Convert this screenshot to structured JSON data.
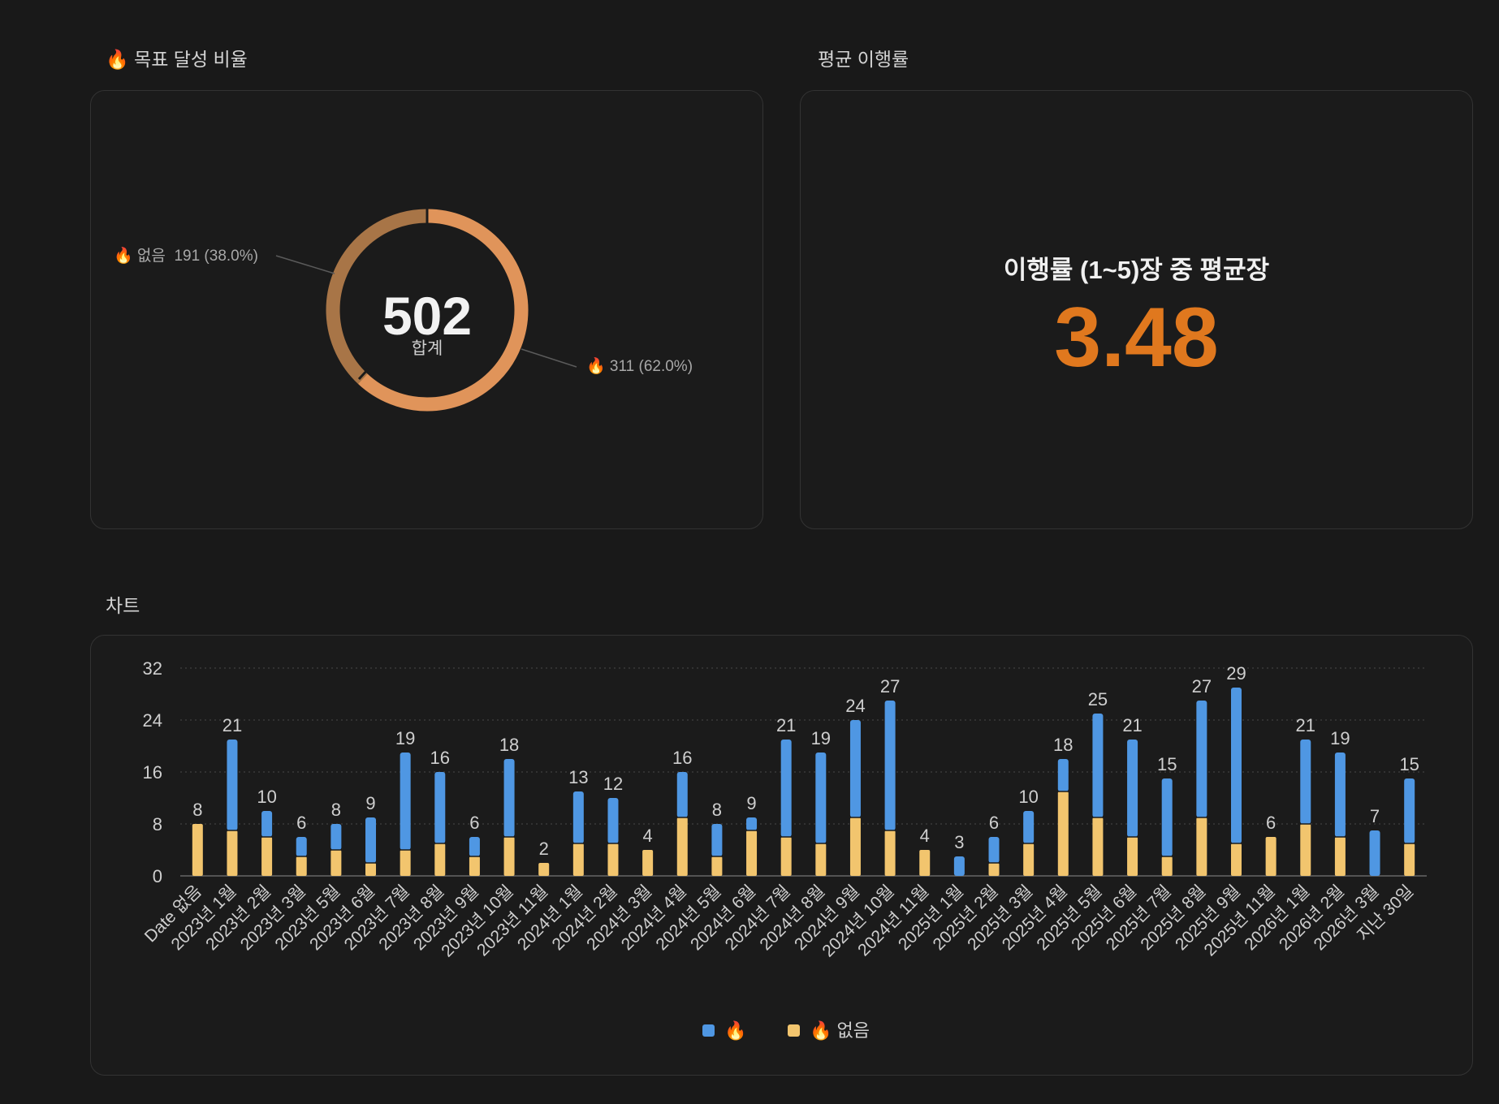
{
  "sections": {
    "goal_title": "🔥 목표 달성 비율",
    "avg_title": "평균 이행률",
    "chart_title": "차트"
  },
  "donut": {
    "total": "502",
    "total_label": "합계",
    "label_none": "🔥 없음  191 (38.0%)",
    "label_fire": "🔥 311 (62.0%)",
    "values": {
      "fire": 311,
      "none": 191
    },
    "colors": {
      "fire": "#e0945a",
      "none": "#a87547"
    }
  },
  "average": {
    "label": "이행률 (1~5)장 중 평균장",
    "value": "3.48"
  },
  "chart_data": {
    "type": "bar",
    "stacked": true,
    "categories": [
      "Date 없음",
      "2023년 1월",
      "2023년 2월",
      "2023년 3월",
      "2023년 5월",
      "2023년 6월",
      "2023년 7월",
      "2023년 8월",
      "2023년 9월",
      "2023년 10월",
      "2023년 11월",
      "2024년 1월",
      "2024년 2월",
      "2024년 3월",
      "2024년 4월",
      "2024년 5월",
      "2024년 6월",
      "2024년 7월",
      "2024년 8월",
      "2024년 9월",
      "2024년 10월",
      "2024년 11월",
      "2025년 1월",
      "2025년 2월",
      "2025년 3월",
      "2025년 4월",
      "2025년 5월",
      "2025년 6월",
      "2025년 7월",
      "2025년 8월",
      "2025년 9월",
      "2025년 11월",
      "2026년 1월",
      "2026년 2월",
      "2026년 3월",
      "지난 30일"
    ],
    "series": [
      {
        "name": "🔥 없음",
        "color": "#f2c56e",
        "values": [
          8,
          7,
          6,
          3,
          4,
          2,
          4,
          5,
          3,
          6,
          2,
          5,
          5,
          4,
          9,
          3,
          7,
          6,
          5,
          9,
          7,
          4,
          0,
          2,
          5,
          13,
          9,
          6,
          3,
          9,
          5,
          6,
          8,
          6,
          0,
          5
        ]
      },
      {
        "name": "🔥",
        "color": "#4f97e3",
        "values": [
          0,
          14,
          4,
          3,
          4,
          7,
          15,
          11,
          3,
          12,
          0,
          8,
          7,
          0,
          7,
          5,
          2,
          15,
          14,
          15,
          20,
          0,
          3,
          4,
          5,
          5,
          16,
          15,
          12,
          18,
          24,
          0,
          13,
          13,
          7,
          10
        ]
      }
    ],
    "totals": [
      8,
      21,
      10,
      6,
      8,
      9,
      19,
      16,
      6,
      18,
      2,
      13,
      12,
      4,
      16,
      8,
      9,
      21,
      19,
      24,
      27,
      4,
      3,
      6,
      10,
      18,
      25,
      21,
      15,
      27,
      29,
      6,
      21,
      19,
      7,
      15
    ],
    "yticks": [
      0,
      8,
      16,
      24,
      32
    ],
    "ylim": [
      0,
      32
    ],
    "legend": [
      "🔥",
      "🔥 없음"
    ]
  }
}
